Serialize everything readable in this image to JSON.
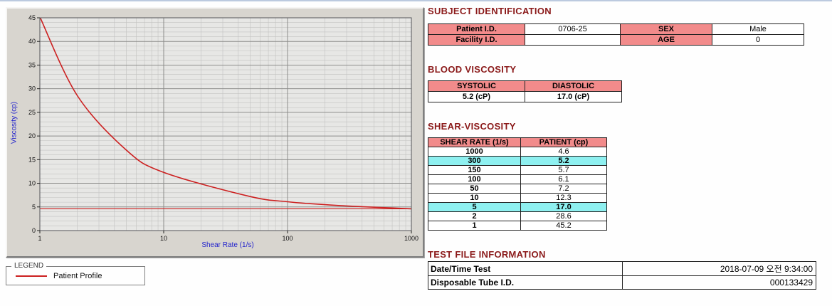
{
  "chart": {
    "ylabel": "Viscosity (cp)",
    "xlabel": "Shear Rate (1/s)",
    "y_ticks": [
      0,
      5,
      10,
      15,
      20,
      25,
      30,
      35,
      40,
      45
    ],
    "x_ticks": [
      1,
      10,
      100,
      1000
    ]
  },
  "chart_data": {
    "type": "line",
    "title": "",
    "xlabel": "Shear Rate (1/s)",
    "ylabel": "Viscosity (cp)",
    "xscale": "log",
    "xlim": [
      1,
      1000
    ],
    "ylim": [
      0,
      45
    ],
    "grid": true,
    "reference_line_y": 4.6,
    "line_color": "#cc2020",
    "series": [
      {
        "name": "Patient Profile",
        "x": [
          1,
          2,
          5,
          10,
          50,
          100,
          150,
          300,
          1000
        ],
        "y": [
          45.2,
          28.6,
          17.0,
          12.3,
          7.2,
          6.1,
          5.7,
          5.2,
          4.6
        ]
      }
    ]
  },
  "legend": {
    "box_label": "LEGEND",
    "entries": [
      {
        "label": "Patient Profile",
        "color": "#cc2020"
      }
    ]
  },
  "sections": {
    "subject": {
      "title": "SUBJECT IDENTIFICATION",
      "rows": [
        {
          "label1": "Patient I.D.",
          "value1": "0706-25",
          "label2": "SEX",
          "value2": "Male"
        },
        {
          "label1": "Facility I.D.",
          "value1": "",
          "label2": "AGE",
          "value2": "0"
        }
      ]
    },
    "blood_viscosity": {
      "title": "BLOOD VISCOSITY",
      "headers": [
        "SYSTOLIC",
        "DIASTOLIC"
      ],
      "values": [
        "5.2 (cP)",
        "17.0 (cP)"
      ]
    },
    "shear_viscosity": {
      "title": "SHEAR-VISCOSITY",
      "headers": [
        "SHEAR RATE (1/s)",
        "PATIENT (cp)"
      ],
      "rows": [
        {
          "rate": "1000",
          "value": "4.6",
          "highlight": false
        },
        {
          "rate": "300",
          "value": "5.2",
          "highlight": true
        },
        {
          "rate": "150",
          "value": "5.7",
          "highlight": false
        },
        {
          "rate": "100",
          "value": "6.1",
          "highlight": false
        },
        {
          "rate": "50",
          "value": "7.2",
          "highlight": false
        },
        {
          "rate": "10",
          "value": "12.3",
          "highlight": false
        },
        {
          "rate": "5",
          "value": "17.0",
          "highlight": true
        },
        {
          "rate": "2",
          "value": "28.6",
          "highlight": false
        },
        {
          "rate": "1",
          "value": "45.2",
          "highlight": false
        }
      ]
    },
    "test_file": {
      "title": "TEST FILE INFORMATION",
      "rows": [
        {
          "label": "Date/Time Test",
          "value": "2018-07-09 오전 9:34:00"
        },
        {
          "label": "Disposable Tube I.D.",
          "value": "000133429"
        }
      ]
    }
  },
  "colors": {
    "section_title": "#8b1a1a",
    "table_label_bg": "#f28b8b",
    "highlight_bg": "#8ef0f0",
    "curve_red": "#cc2020",
    "axis_label_blue": "#2323cc"
  }
}
